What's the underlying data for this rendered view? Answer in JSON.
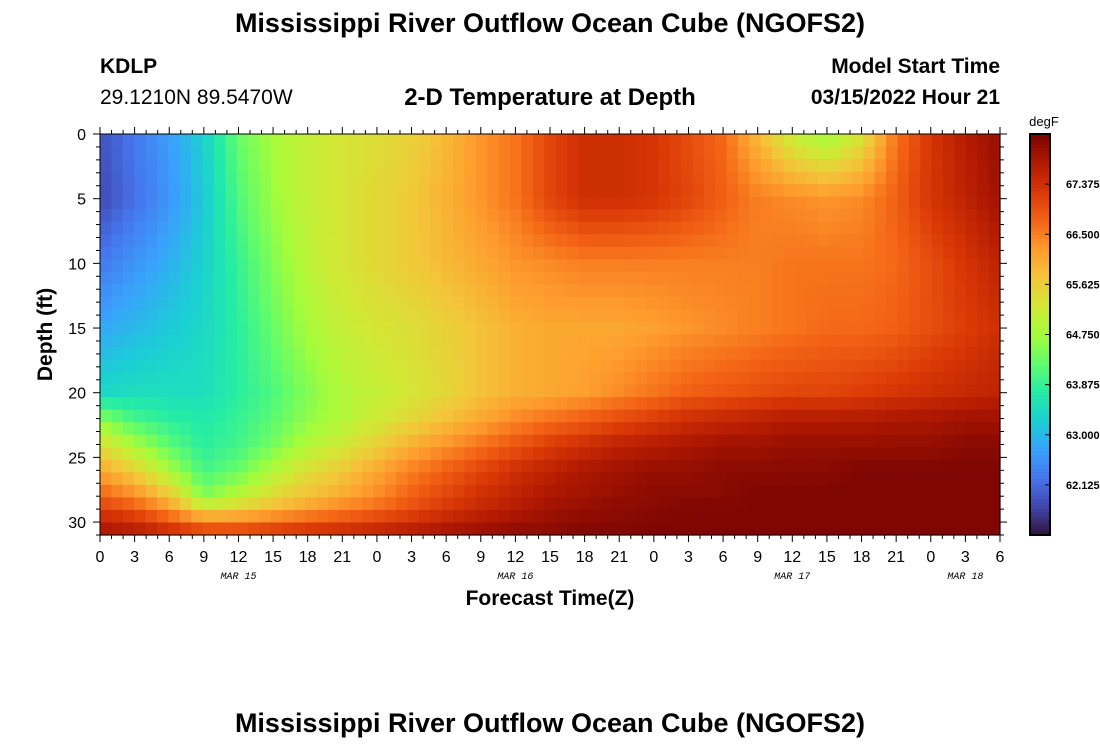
{
  "page": {
    "title_top": "Mississippi River Outflow Ocean Cube (NGOFS2)",
    "title_bottom": "Mississippi River Outflow Ocean Cube (NGOFS2)",
    "station": "KDLP",
    "coords": "29.1210N  89.5470W",
    "model_label": "Model Start Time",
    "model_time": "03/15/2022 Hour 21"
  },
  "chart_data": {
    "type": "heatmap",
    "title": "2-D Temperature at Depth",
    "xlabel": "Forecast Time(Z)",
    "ylabel": "Depth (ft)",
    "colorbar_label": "degF",
    "x_tick_labels": [
      "0",
      "3",
      "6",
      "9",
      "12",
      "15",
      "18",
      "21",
      "0",
      "3",
      "6",
      "9",
      "12",
      "15",
      "18",
      "21",
      "0",
      "3",
      "6",
      "9",
      "12",
      "15",
      "18",
      "21",
      "0",
      "3",
      "6"
    ],
    "date_labels": [
      {
        "label": "MAR 15",
        "hour_index": 12
      },
      {
        "label": "MAR 16",
        "hour_index": 36
      },
      {
        "label": "MAR 17",
        "hour_index": 60
      },
      {
        "label": "MAR 18",
        "hour_index": 75
      }
    ],
    "x_range_hours": [
      0,
      78
    ],
    "y_range_ft": [
      0,
      31
    ],
    "y_ticks": [
      0,
      5,
      10,
      15,
      20,
      25,
      30
    ],
    "colorbar_ticks": [
      62.125,
      63.0,
      63.875,
      64.75,
      65.625,
      66.5,
      67.375
    ],
    "colorbar_tick_labels": [
      "62.125",
      "63.000",
      "63.875",
      "64.750",
      "65.625",
      "66.500",
      "67.375"
    ],
    "color_range": [
      61.25,
      68.25
    ],
    "colormap": [
      "#30123b",
      "#4145ab",
      "#4675ed",
      "#39a2fc",
      "#1bcfd4",
      "#24eca6",
      "#61fc6c",
      "#a4fc3b",
      "#d1e834",
      "#f3c63a",
      "#fe9b2d",
      "#f36315",
      "#d93806",
      "#b11901",
      "#7a0402"
    ],
    "grid": {
      "cols": 79,
      "rows": 32
    },
    "anchors": {
      "times": [
        0,
        3,
        6,
        9,
        12,
        15,
        18,
        21,
        24,
        27,
        30,
        33,
        36,
        39,
        42,
        45,
        48,
        51,
        54,
        57,
        60,
        63,
        66,
        69,
        72,
        75,
        78
      ],
      "depths": [
        0,
        5,
        10,
        15,
        20,
        22,
        24,
        26,
        28,
        29,
        30,
        31
      ],
      "temps": [
        [
          61.9,
          62.3,
          62.7,
          63.3,
          64.3,
          64.8,
          65.1,
          65.3,
          65.4,
          65.6,
          65.9,
          66.3,
          66.6,
          67.1,
          67.4,
          67.4,
          67.3,
          67.0,
          66.7,
          65.9,
          65.1,
          64.7,
          65.3,
          66.6,
          67.3,
          67.7,
          68.0
        ],
        [
          61.8,
          62.2,
          62.6,
          63.2,
          64.1,
          64.7,
          65.1,
          65.3,
          65.5,
          65.7,
          66.0,
          66.3,
          66.6,
          67.1,
          67.4,
          67.4,
          67.3,
          67.1,
          66.8,
          66.5,
          66.4,
          66.3,
          66.4,
          66.8,
          67.3,
          67.6,
          67.9
        ],
        [
          62.3,
          62.6,
          62.9,
          63.3,
          63.9,
          64.5,
          65.0,
          65.3,
          65.5,
          65.7,
          65.9,
          66.1,
          66.3,
          66.4,
          66.5,
          66.5,
          66.5,
          66.5,
          66.5,
          66.5,
          66.6,
          66.6,
          66.6,
          66.7,
          67.0,
          67.3,
          67.6
        ],
        [
          62.8,
          63.0,
          63.2,
          63.4,
          63.8,
          64.3,
          64.8,
          65.1,
          65.3,
          65.4,
          65.6,
          65.8,
          66.0,
          66.1,
          66.1,
          66.1,
          66.2,
          66.3,
          66.4,
          66.5,
          66.6,
          66.7,
          66.7,
          66.8,
          67.0,
          67.2,
          67.4
        ],
        [
          63.4,
          63.5,
          63.5,
          63.5,
          63.8,
          64.1,
          64.5,
          64.9,
          65.1,
          65.3,
          65.5,
          65.8,
          66.0,
          66.1,
          66.2,
          66.4,
          66.6,
          66.8,
          66.9,
          67.0,
          67.1,
          67.1,
          67.2,
          67.3,
          67.4,
          67.5,
          67.6
        ],
        [
          64.5,
          64.0,
          63.8,
          63.7,
          63.9,
          64.2,
          64.6,
          64.9,
          65.2,
          65.5,
          65.8,
          66.1,
          66.4,
          66.6,
          66.8,
          67.0,
          67.2,
          67.4,
          67.5,
          67.6,
          67.7,
          67.7,
          67.7,
          67.8,
          67.8,
          67.9,
          67.9
        ],
        [
          65.4,
          64.8,
          64.2,
          63.8,
          64.0,
          64.4,
          64.9,
          65.2,
          65.6,
          66.0,
          66.3,
          66.6,
          66.9,
          67.2,
          67.4,
          67.6,
          67.7,
          67.8,
          67.9,
          67.9,
          68.0,
          68.0,
          68.0,
          68.0,
          68.0,
          68.1,
          68.1
        ],
        [
          66.1,
          65.6,
          64.8,
          64.0,
          64.3,
          64.9,
          65.4,
          65.7,
          66.1,
          66.5,
          66.8,
          67.1,
          67.4,
          67.6,
          67.8,
          67.9,
          68.0,
          68.0,
          68.1,
          68.1,
          68.1,
          68.1,
          68.2,
          68.2,
          68.2,
          68.2,
          68.2
        ],
        [
          66.8,
          66.4,
          65.8,
          64.5,
          65.0,
          65.5,
          65.8,
          66.1,
          66.4,
          66.8,
          67.1,
          67.4,
          67.6,
          67.8,
          67.9,
          68.0,
          68.1,
          68.1,
          68.1,
          68.2,
          68.2,
          68.2,
          68.2,
          68.2,
          68.2,
          68.2,
          68.2
        ],
        [
          67.2,
          66.9,
          66.3,
          65.4,
          65.6,
          65.9,
          66.2,
          66.5,
          66.7,
          67.0,
          67.3,
          67.5,
          67.7,
          67.9,
          68.0,
          68.1,
          68.1,
          68.2,
          68.2,
          68.2,
          68.2,
          68.2,
          68.2,
          68.2,
          68.2,
          68.2,
          68.2
        ],
        [
          67.6,
          67.4,
          67.0,
          66.5,
          66.5,
          66.7,
          66.9,
          67.0,
          67.2,
          67.4,
          67.6,
          67.8,
          67.9,
          68.0,
          68.1,
          68.1,
          68.2,
          68.2,
          68.2,
          68.2,
          68.2,
          68.2,
          68.2,
          68.2,
          68.2,
          68.2,
          68.2
        ],
        [
          67.9,
          67.8,
          67.6,
          67.3,
          67.3,
          67.4,
          67.5,
          67.6,
          67.7,
          67.8,
          67.9,
          68.0,
          68.1,
          68.1,
          68.2,
          68.2,
          68.2,
          68.2,
          68.2,
          68.2,
          68.2,
          68.2,
          68.2,
          68.2,
          68.2,
          68.2,
          68.2
        ]
      ]
    }
  }
}
